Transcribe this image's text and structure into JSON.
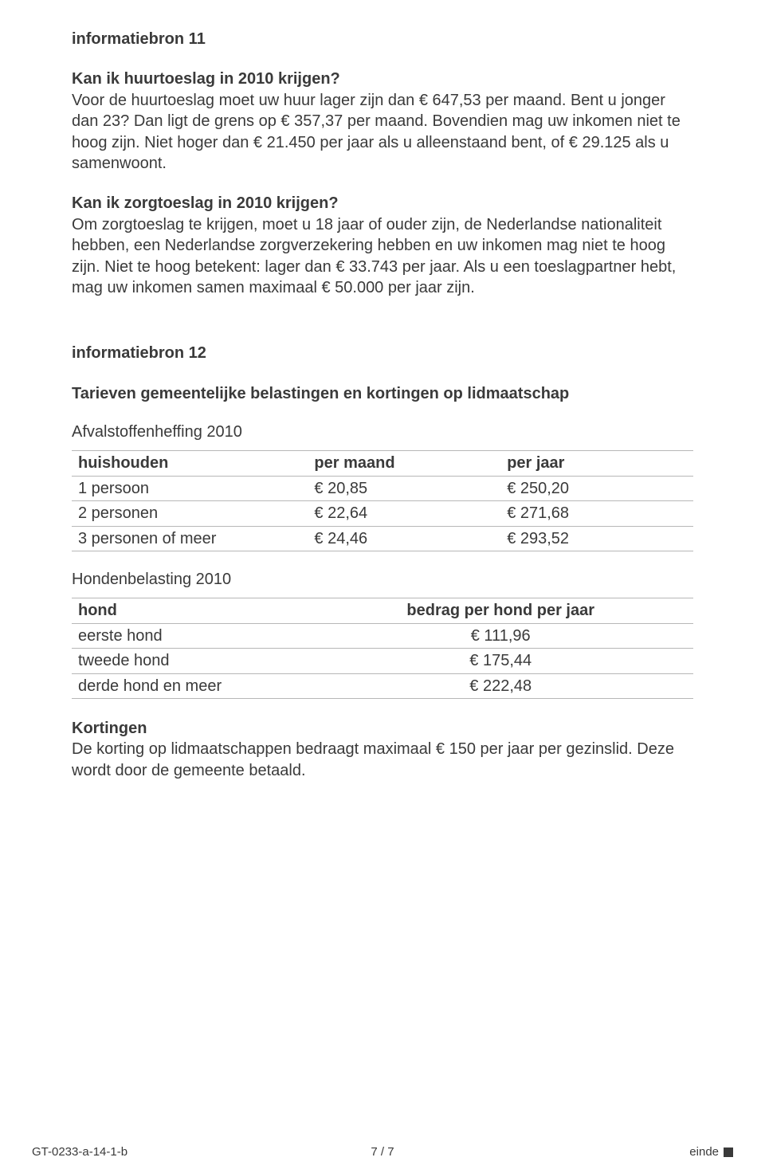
{
  "section11": {
    "heading": "informatiebron 11",
    "q1_heading": "Kan ik huurtoeslag in 2010 krijgen?",
    "q1_text": "Voor de huurtoeslag moet uw huur lager zijn dan € 647,53 per maand. Bent u jonger dan 23? Dan ligt de grens op € 357,37 per maand. Bovendien mag uw inkomen niet te hoog zijn. Niet hoger dan € 21.450 per jaar als u alleenstaand bent, of € 29.125 als u samenwoont.",
    "q2_heading": "Kan ik zorgtoeslag in 2010 krijgen?",
    "q2_text": "Om zorgtoeslag te krijgen, moet u 18 jaar of ouder zijn, de Nederlandse nationaliteit hebben, een Nederlandse zorgverzekering hebben en uw inkomen mag niet te hoog zijn. Niet te hoog betekent: lager dan € 33.743 per jaar. Als u een toeslagpartner hebt, mag uw inkomen samen maximaal € 50.000 per jaar zijn."
  },
  "section12": {
    "heading": "informatiebron 12",
    "sub_heading": "Tarieven gemeentelijke belastingen en kortingen op lidmaatschap",
    "table1_title": "Afvalstoffenheffing 2010",
    "table1": {
      "columns": [
        "huishouden",
        "per maand",
        "per jaar"
      ],
      "rows": [
        [
          "1 persoon",
          "€ 20,85",
          "€ 250,20"
        ],
        [
          "2 personen",
          "€ 22,64",
          "€ 271,68"
        ],
        [
          "3 personen of meer",
          "€ 24,46",
          "€ 293,52"
        ]
      ]
    },
    "table2_title": "Hondenbelasting 2010",
    "table2": {
      "columns": [
        "hond",
        "bedrag per hond per jaar"
      ],
      "rows": [
        [
          "eerste hond",
          "€ 111,96"
        ],
        [
          "tweede hond",
          "€ 175,44"
        ],
        [
          "derde hond en meer",
          "€ 222,48"
        ]
      ]
    },
    "kortingen_heading": "Kortingen",
    "kortingen_text": "De korting op lidmaatschappen bedraagt maximaal € 150 per jaar per gezinslid. Deze wordt door de gemeente betaald."
  },
  "footer": {
    "left": "GT-0233-a-14-1-b",
    "center": "7 / 7",
    "right": "einde"
  },
  "colors": {
    "text": "#3a3a3a",
    "border": "#b7b7b7",
    "background": "#ffffff"
  },
  "typography": {
    "body_fontsize": 20,
    "footer_fontsize": 15,
    "font_family": "Arial"
  }
}
